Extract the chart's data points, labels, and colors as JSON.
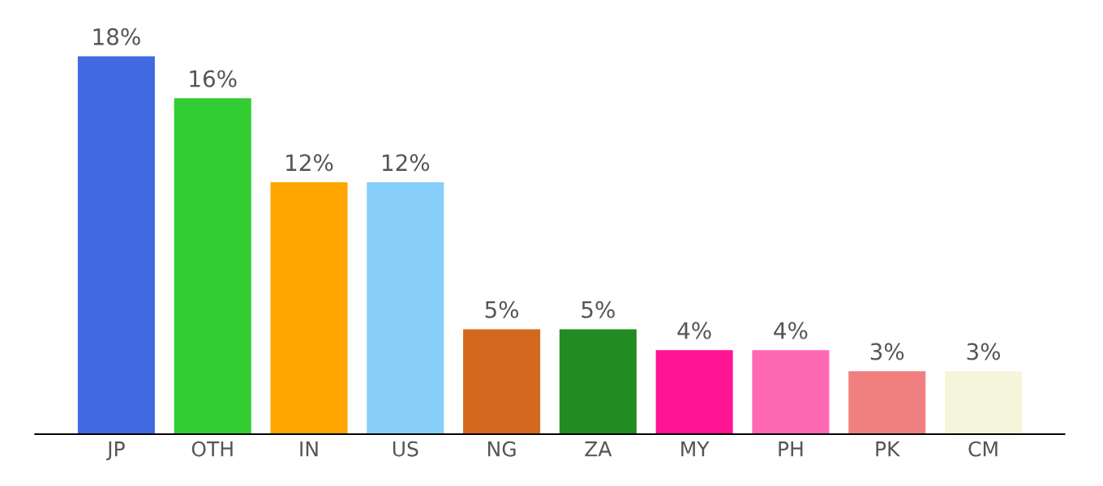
{
  "chart_data": {
    "type": "bar",
    "categories": [
      "JP",
      "OTH",
      "IN",
      "US",
      "NG",
      "ZA",
      "MY",
      "PH",
      "PK",
      "CM"
    ],
    "values": [
      18,
      16,
      12,
      12,
      5,
      5,
      4,
      4,
      3,
      3
    ],
    "colors": [
      "#4169e1",
      "#32cd32",
      "#ffa500",
      "#87cefa",
      "#d2691e",
      "#228b22",
      "#ff1493",
      "#ff69b4",
      "#f08080",
      "#f5f5dc"
    ],
    "value_labels": [
      "18%",
      "16%",
      "12%",
      "12%",
      "5%",
      "5%",
      "4%",
      "4%",
      "3%",
      "3%"
    ],
    "grid": false,
    "legend": false
  }
}
